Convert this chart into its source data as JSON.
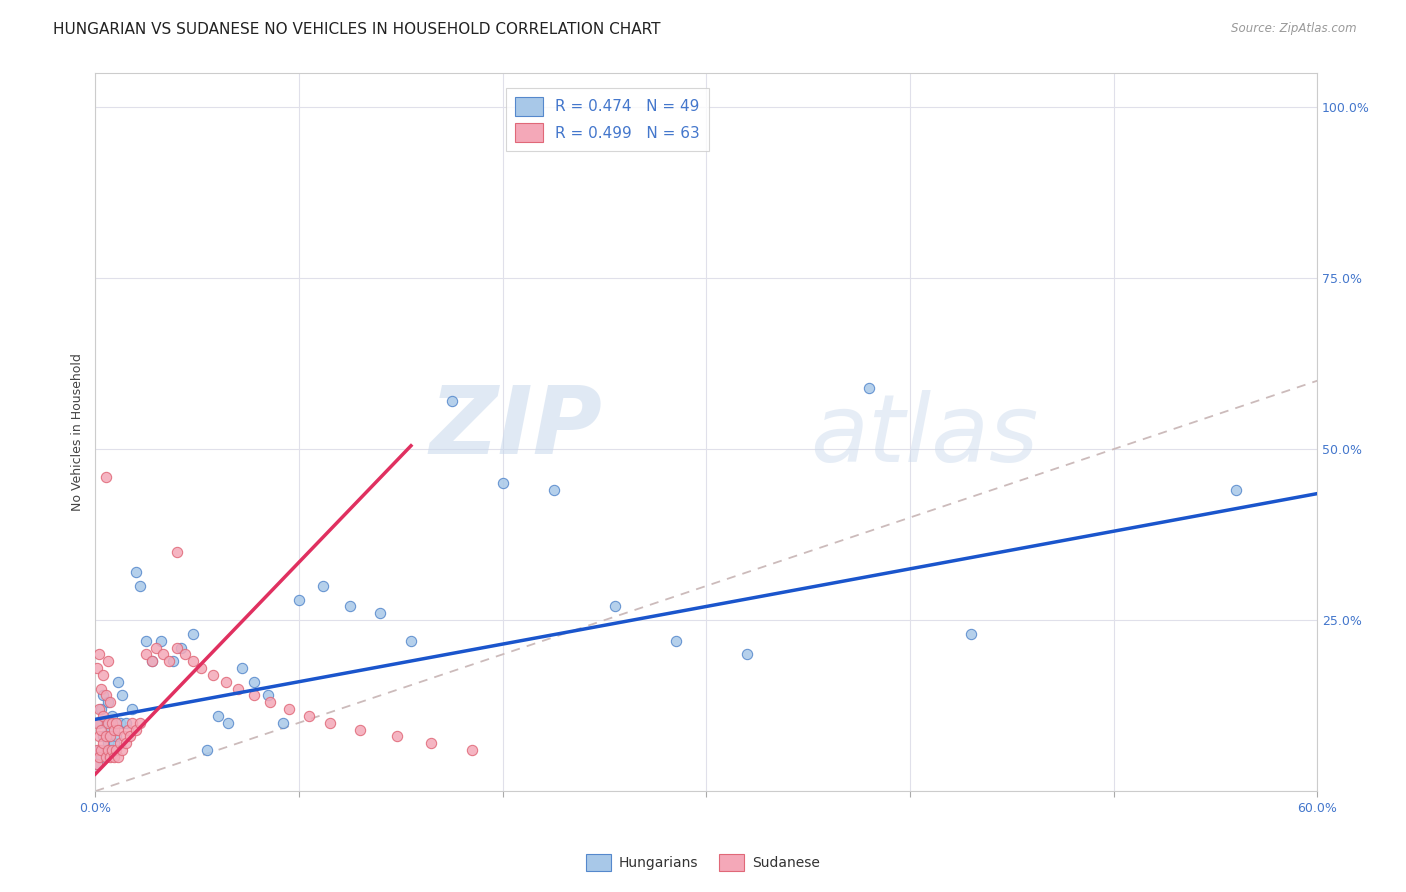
{
  "title": "HUNGARIAN VS SUDANESE NO VEHICLES IN HOUSEHOLD CORRELATION CHART",
  "source": "Source: ZipAtlas.com",
  "ylabel": "No Vehicles in Household",
  "xlim": [
    0.0,
    0.6
  ],
  "ylim": [
    0.0,
    1.05
  ],
  "xticks": [
    0.0,
    0.1,
    0.2,
    0.3,
    0.4,
    0.5,
    0.6
  ],
  "xticklabels": [
    "0.0%",
    "",
    "",
    "",
    "",
    "",
    "60.0%"
  ],
  "yticks": [
    0.0,
    0.25,
    0.5,
    0.75,
    1.0
  ],
  "yticklabels": [
    "",
    "25.0%",
    "50.0%",
    "75.0%",
    "100.0%"
  ],
  "hungarian_color": "#a8c8e8",
  "sudanese_color": "#f4a8b8",
  "hungarian_edge": "#5588cc",
  "sudanese_edge": "#e06878",
  "trendline_hungarian_color": "#1a55cc",
  "trendline_sudanese_color": "#e03060",
  "diagonal_color": "#ccbbbb",
  "watermark_zip": "ZIP",
  "watermark_atlas": "atlas",
  "legend_r_hungarian": "0.474",
  "legend_n_hungarian": "49",
  "legend_r_sudanese": "0.499",
  "legend_n_sudanese": "63",
  "hungarian_x": [
    0.001,
    0.002,
    0.002,
    0.003,
    0.003,
    0.004,
    0.004,
    0.005,
    0.005,
    0.006,
    0.006,
    0.007,
    0.008,
    0.009,
    0.01,
    0.011,
    0.012,
    0.013,
    0.015,
    0.018,
    0.02,
    0.022,
    0.025,
    0.028,
    0.032,
    0.038,
    0.042,
    0.048,
    0.055,
    0.06,
    0.065,
    0.072,
    0.078,
    0.085,
    0.092,
    0.1,
    0.112,
    0.125,
    0.14,
    0.155,
    0.175,
    0.2,
    0.225,
    0.255,
    0.285,
    0.32,
    0.38,
    0.43,
    0.56
  ],
  "hungarian_y": [
    0.04,
    0.06,
    0.1,
    0.05,
    0.12,
    0.08,
    0.14,
    0.06,
    0.1,
    0.07,
    0.13,
    0.09,
    0.11,
    0.07,
    0.08,
    0.16,
    0.1,
    0.14,
    0.1,
    0.12,
    0.32,
    0.3,
    0.22,
    0.19,
    0.22,
    0.19,
    0.21,
    0.23,
    0.06,
    0.11,
    0.1,
    0.18,
    0.16,
    0.14,
    0.1,
    0.28,
    0.3,
    0.27,
    0.26,
    0.22,
    0.57,
    0.45,
    0.44,
    0.27,
    0.22,
    0.2,
    0.59,
    0.23,
    0.44
  ],
  "sudanese_x": [
    0.001,
    0.001,
    0.001,
    0.001,
    0.002,
    0.002,
    0.002,
    0.002,
    0.003,
    0.003,
    0.003,
    0.004,
    0.004,
    0.004,
    0.005,
    0.005,
    0.005,
    0.006,
    0.006,
    0.006,
    0.007,
    0.007,
    0.007,
    0.008,
    0.008,
    0.009,
    0.009,
    0.01,
    0.01,
    0.011,
    0.011,
    0.012,
    0.013,
    0.014,
    0.015,
    0.016,
    0.017,
    0.018,
    0.02,
    0.022,
    0.025,
    0.028,
    0.03,
    0.033,
    0.036,
    0.04,
    0.044,
    0.048,
    0.052,
    0.058,
    0.064,
    0.07,
    0.078,
    0.086,
    0.095,
    0.105,
    0.115,
    0.13,
    0.148,
    0.165,
    0.185,
    0.04,
    0.005
  ],
  "sudanese_y": [
    0.04,
    0.06,
    0.1,
    0.18,
    0.05,
    0.08,
    0.12,
    0.2,
    0.06,
    0.09,
    0.15,
    0.07,
    0.11,
    0.17,
    0.05,
    0.08,
    0.14,
    0.06,
    0.1,
    0.19,
    0.05,
    0.08,
    0.13,
    0.06,
    0.1,
    0.05,
    0.09,
    0.06,
    0.1,
    0.05,
    0.09,
    0.07,
    0.06,
    0.08,
    0.07,
    0.09,
    0.08,
    0.1,
    0.09,
    0.1,
    0.2,
    0.19,
    0.21,
    0.2,
    0.19,
    0.21,
    0.2,
    0.19,
    0.18,
    0.17,
    0.16,
    0.15,
    0.14,
    0.13,
    0.12,
    0.11,
    0.1,
    0.09,
    0.08,
    0.07,
    0.06,
    0.35,
    0.46
  ],
  "background_color": "#ffffff",
  "plot_bg_color": "#ffffff",
  "grid_color": "#e0e0ea",
  "title_fontsize": 11,
  "axis_label_fontsize": 9,
  "tick_fontsize": 9,
  "tick_color": "#4477cc",
  "marker_size": 55,
  "trendline_hung_x0": 0.0,
  "trendline_hung_y0": 0.105,
  "trendline_hung_x1": 0.6,
  "trendline_hung_y1": 0.435,
  "trendline_sud_x0": 0.0,
  "trendline_sud_y0": 0.025,
  "trendline_sud_x1": 0.155,
  "trendline_sud_y1": 0.505
}
